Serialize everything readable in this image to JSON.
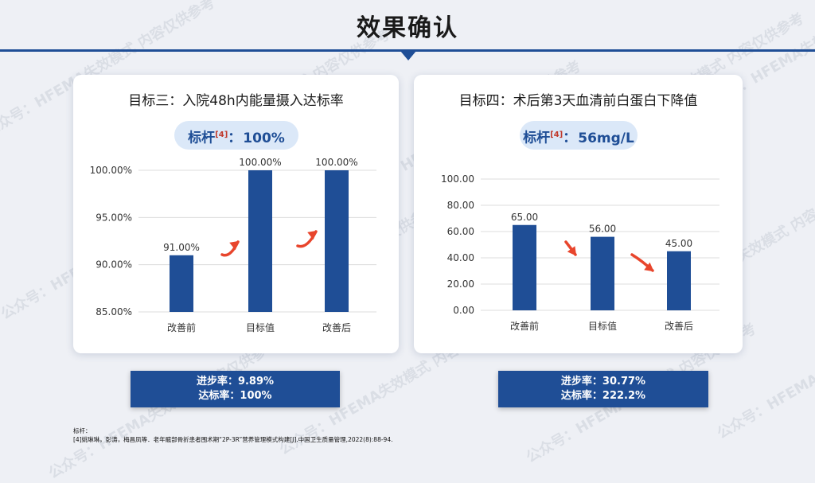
{
  "page": {
    "title": "效果确认"
  },
  "watermark": {
    "text": "公众号：HFEMA失效模式   内容仅供参考"
  },
  "left_card": {
    "title": "目标三：入院48h内能量摄入达标率",
    "benchmark_label": "标杆",
    "benchmark_ref": "[4]",
    "benchmark_sep": "：",
    "benchmark_value": "100%"
  },
  "right_card": {
    "title": "目标四：术后第3天血清前白蛋白下降值",
    "benchmark_label": "标杆",
    "benchmark_ref": "[4]",
    "benchmark_sep": "：",
    "benchmark_value": "56mg/L"
  },
  "stats_left": {
    "line1": "进步率：9.89%",
    "line2": "达标率：100%"
  },
  "stats_right": {
    "line1": "进步率：30.77%",
    "line2": "达标率：222.2%"
  },
  "footnote": {
    "line1": "标杆：",
    "line2": "[4]姚琳琳，彭涛，梅昌凤等．老年髋部骨折患者围术期“2P-3R”营养管理模式构建[J].中国卫生质量管理,2022(8):88-94."
  },
  "colors": {
    "bar": "#1f4e96",
    "arrow": "#e8452c",
    "accent": "#1f4e96"
  },
  "chart_data": [
    {
      "type": "bar",
      "categories": [
        "改善前",
        "目标值",
        "改善后"
      ],
      "values": [
        91.0,
        100.0,
        100.0
      ],
      "value_labels": [
        "91.00%",
        "100.00%",
        "100.00%"
      ],
      "y_ticks": [
        "85.00%",
        "90.00%",
        "95.00%",
        "100.00%"
      ],
      "ylim": [
        85,
        100
      ],
      "grid": true
    },
    {
      "type": "bar",
      "categories": [
        "改善前",
        "目标值",
        "改善后"
      ],
      "values": [
        65.0,
        56.0,
        45.0
      ],
      "value_labels": [
        "65.00",
        "56.00",
        "45.00"
      ],
      "y_ticks": [
        "0.00",
        "20.00",
        "40.00",
        "60.00",
        "80.00",
        "100.00"
      ],
      "ylim": [
        0,
        100
      ],
      "grid": true
    }
  ]
}
